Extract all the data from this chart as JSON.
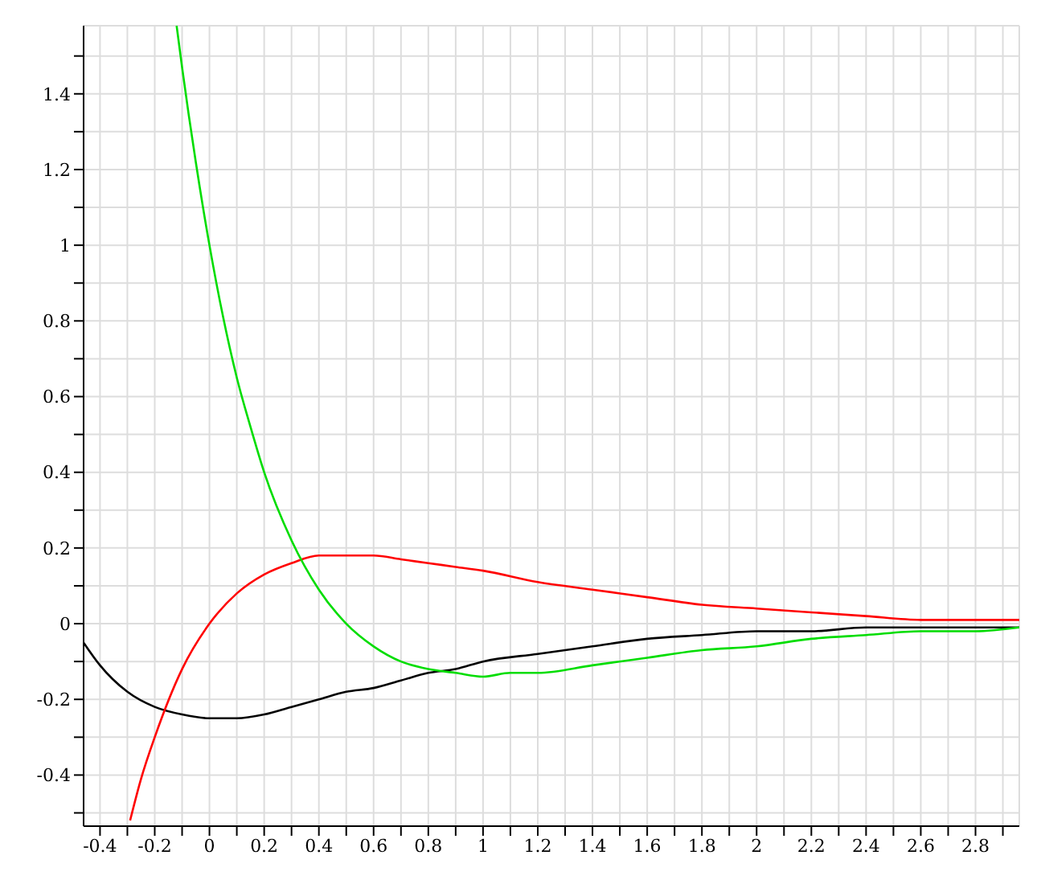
{
  "chart_data": {
    "type": "line",
    "xlim": [
      -0.46,
      2.96
    ],
    "ylim": [
      -0.535,
      1.58
    ],
    "xticks": [
      -0.4,
      {
        "value": -0.3,
        "label": null
      },
      -0.2,
      {
        "value": -0.1,
        "label": null
      },
      0,
      {
        "value": 0.1,
        "label": null
      },
      0.2,
      {
        "value": 0.3,
        "label": null
      },
      0.4,
      {
        "value": 0.5,
        "label": null
      },
      0.6,
      {
        "value": 0.7,
        "label": null
      },
      0.8,
      {
        "value": 0.9,
        "label": null
      },
      1,
      {
        "value": 1.1,
        "label": null
      },
      1.2,
      {
        "value": 1.3,
        "label": null
      },
      1.4,
      {
        "value": 1.5,
        "label": null
      },
      1.6,
      {
        "value": 1.7,
        "label": null
      },
      1.8,
      {
        "value": 1.9,
        "label": null
      },
      2,
      {
        "value": 2.1,
        "label": null
      },
      2.2,
      {
        "value": 2.3,
        "label": null
      },
      2.4,
      {
        "value": 2.5,
        "label": null
      },
      2.6,
      {
        "value": 2.7,
        "label": null
      },
      2.8,
      {
        "value": 2.9,
        "label": null
      }
    ],
    "yticks": [
      {
        "value": -0.5,
        "label": null
      },
      -0.4,
      {
        "value": -0.3,
        "label": null
      },
      -0.2,
      {
        "value": -0.1,
        "label": null
      },
      0,
      {
        "value": 0.1,
        "label": null
      },
      0.2,
      {
        "value": 0.3,
        "label": null
      },
      0.4,
      {
        "value": 0.5,
        "label": null
      },
      0.6,
      {
        "value": 0.7,
        "label": null
      },
      0.8,
      {
        "value": 0.9,
        "label": null
      },
      1,
      {
        "value": 1.1,
        "label": null
      },
      1.2,
      {
        "value": 1.3,
        "label": null
      },
      1.4,
      {
        "value": 1.5,
        "label": null
      }
    ],
    "grid": true,
    "marker": "none",
    "line_style": "solid",
    "series": [
      {
        "color": "#000000",
        "x": [
          -0.46,
          -0.4,
          -0.3,
          -0.2,
          -0.1,
          0,
          0.1,
          0.2,
          0.3,
          0.4,
          0.5,
          0.6,
          0.7,
          0.8,
          0.9,
          1,
          1.2,
          1.4,
          1.6,
          1.8,
          2,
          2.2,
          2.4,
          2.6,
          2.8,
          2.96
        ],
        "values": [
          -0.05,
          -0.11,
          -0.18,
          -0.22,
          -0.24,
          -0.25,
          -0.25,
          -0.24,
          -0.22,
          -0.2,
          -0.18,
          -0.17,
          -0.15,
          -0.13,
          -0.12,
          -0.1,
          -0.08,
          -0.06,
          -0.04,
          -0.03,
          -0.02,
          -0.02,
          -0.01,
          -0.01,
          -0.01,
          -0.01
        ]
      },
      {
        "color": "#ff0000",
        "x": [
          -0.29,
          -0.25,
          -0.2,
          -0.1,
          0,
          0.1,
          0.2,
          0.3,
          0.4,
          0.5,
          0.6,
          0.7,
          0.8,
          0.9,
          1,
          1.2,
          1.4,
          1.6,
          1.8,
          2,
          2.2,
          2.4,
          2.6,
          2.8,
          2.96
        ],
        "values": [
          -0.52,
          -0.41,
          -0.3,
          -0.12,
          0,
          0.08,
          0.13,
          0.16,
          0.18,
          0.18,
          0.18,
          0.17,
          0.16,
          0.15,
          0.14,
          0.11,
          0.09,
          0.07,
          0.05,
          0.04,
          0.03,
          0.02,
          0.01,
          0.01,
          0.01
        ]
      },
      {
        "color": "#00dd00",
        "x": [
          -0.12,
          -0.1,
          -0.05,
          0,
          0.05,
          0.1,
          0.15,
          0.2,
          0.3,
          0.4,
          0.5,
          0.6,
          0.7,
          0.8,
          0.9,
          1,
          1.1,
          1.2,
          1.4,
          1.6,
          1.8,
          2,
          2.2,
          2.4,
          2.6,
          2.8,
          2.96
        ],
        "values": [
          1.58,
          1.47,
          1.22,
          1,
          0.81,
          0.65,
          0.52,
          0.4,
          0.22,
          0.09,
          0,
          -0.06,
          -0.1,
          -0.12,
          -0.13,
          -0.14,
          -0.13,
          -0.13,
          -0.11,
          -0.09,
          -0.07,
          -0.06,
          -0.04,
          -0.03,
          -0.02,
          -0.02,
          -0.01
        ]
      }
    ]
  }
}
